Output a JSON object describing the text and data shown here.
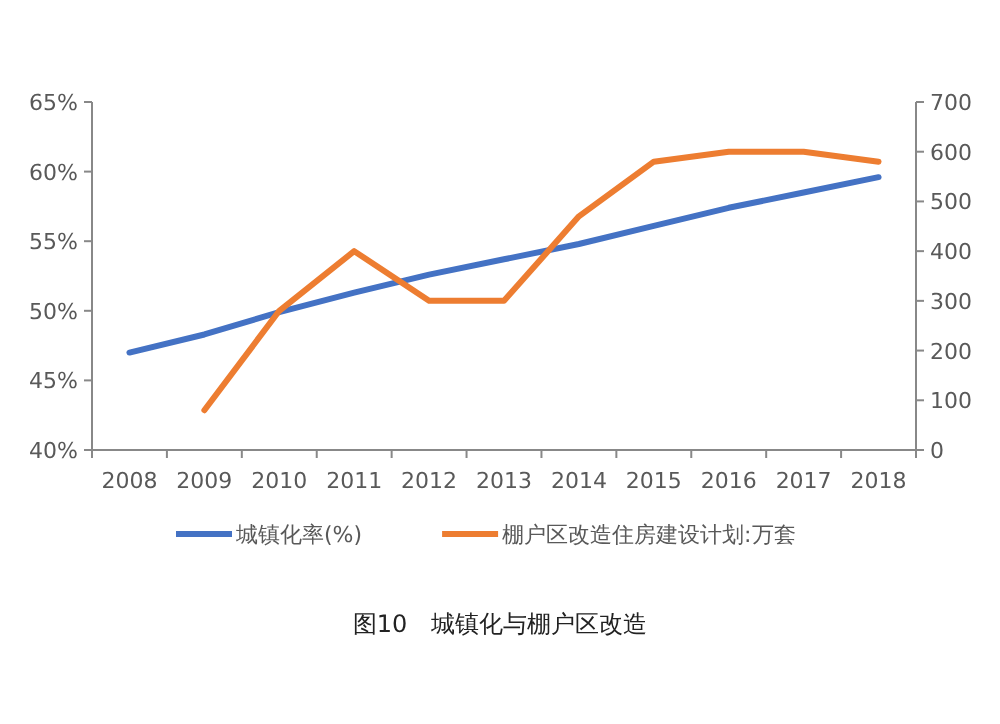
{
  "chart_data": {
    "type": "line",
    "title": "图10　城镇化与棚户区改造",
    "categories": [
      "2008",
      "2009",
      "2010",
      "2011",
      "2012",
      "2013",
      "2014",
      "2015",
      "2016",
      "2017",
      "2018"
    ],
    "series": [
      {
        "name": "城镇化率(%)",
        "color": "#4472c4",
        "values": [
          47.0,
          48.3,
          49.9,
          51.3,
          52.6,
          53.7,
          54.8,
          56.1,
          57.4,
          58.5,
          59.6
        ]
      },
      {
        "name": "棚户区改造住房建设计划:万套",
        "color": "#ed7d31",
        "axis": "y2",
        "values": [
          null,
          80,
          280,
          400,
          300,
          300,
          470,
          580,
          600,
          600,
          580
        ]
      }
    ],
    "ylim": [
      40,
      65
    ],
    "yticks": [
      {
        "value": 40,
        "label": "40%"
      },
      {
        "value": 45,
        "label": "45%"
      },
      {
        "value": 50,
        "label": "50%"
      },
      {
        "value": 55,
        "label": "55%"
      },
      {
        "value": 60,
        "label": "60%"
      },
      {
        "value": 65,
        "label": "65%"
      }
    ],
    "y2lim": [
      0,
      700
    ],
    "y2ticks": [
      0,
      100,
      200,
      300,
      400,
      500,
      600,
      700
    ],
    "legend": "bottom",
    "grid": false,
    "marker": "none",
    "line_style": "solid"
  }
}
